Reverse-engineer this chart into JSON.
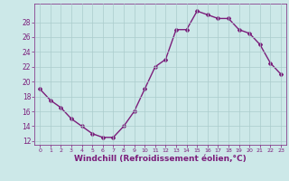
{
  "x": [
    0,
    1,
    2,
    3,
    4,
    5,
    6,
    7,
    8,
    9,
    10,
    11,
    12,
    13,
    14,
    15,
    16,
    17,
    18,
    19,
    20,
    21,
    22,
    23
  ],
  "y": [
    19,
    17.5,
    16.5,
    15,
    14,
    13,
    12.5,
    12.5,
    14,
    16,
    19,
    22,
    23,
    27,
    27,
    29.5,
    29,
    28.5,
    28.5,
    27,
    26.5,
    25,
    22.5,
    21
  ],
  "line_color": "#7B1E7B",
  "marker": "D",
  "markersize": 2.0,
  "linewidth": 1.0,
  "bg_color": "#cce8e8",
  "grid_color": "#aacccc",
  "xlabel": "Windchill (Refroidissement éolien,°C)",
  "xlabel_color": "#7B1E7B",
  "tick_color": "#7B1E7B",
  "ylim": [
    11.5,
    30.5
  ],
  "yticks": [
    12,
    14,
    16,
    18,
    20,
    22,
    24,
    26,
    28
  ],
  "xlim": [
    -0.5,
    23.5
  ],
  "xticks": [
    0,
    1,
    2,
    3,
    4,
    5,
    6,
    7,
    8,
    9,
    10,
    11,
    12,
    13,
    14,
    15,
    16,
    17,
    18,
    19,
    20,
    21,
    22,
    23
  ],
  "xlabel_fontsize": 6.5,
  "ytick_fontsize": 5.5,
  "xtick_fontsize": 4.5
}
